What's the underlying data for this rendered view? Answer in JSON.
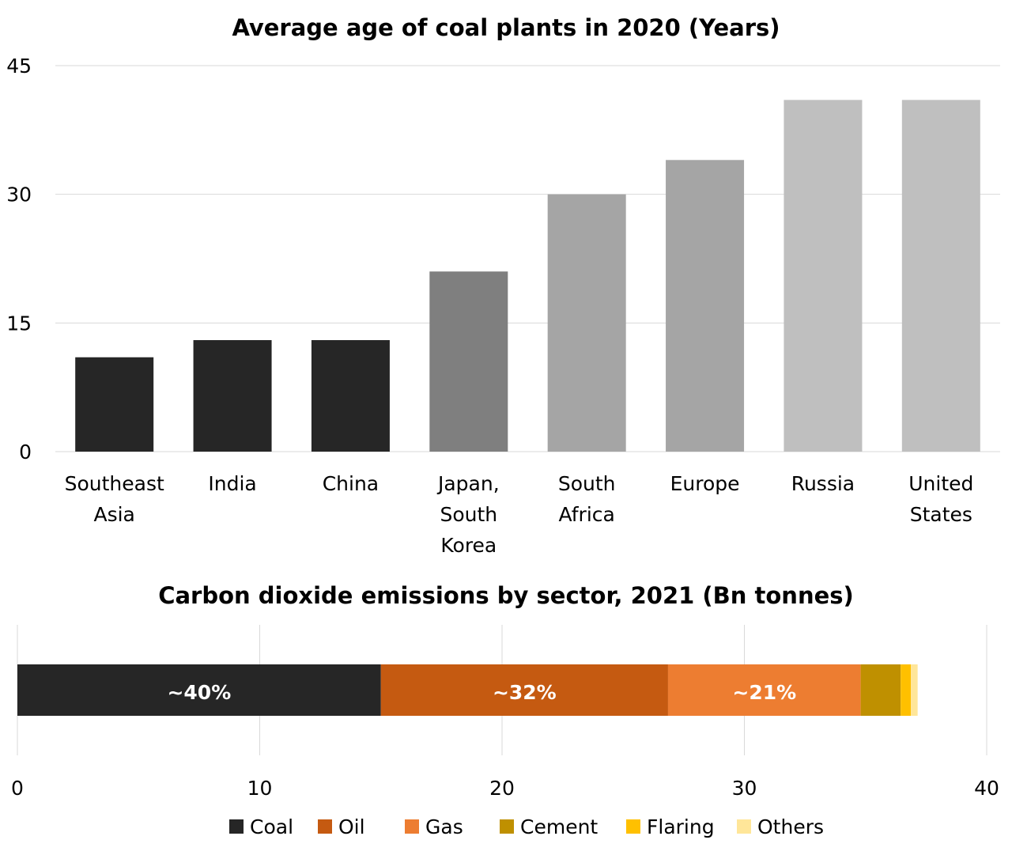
{
  "chart_data": [
    {
      "type": "bar",
      "title": "Average age of coal plants in 2020 (Years)",
      "categories": [
        [
          "Southeast",
          "Asia"
        ],
        [
          "India"
        ],
        [
          "China"
        ],
        [
          "Japan,",
          "South",
          "Korea"
        ],
        [
          "South",
          "Africa"
        ],
        [
          "Europe"
        ],
        [
          "Russia"
        ],
        [
          "United",
          "States"
        ]
      ],
      "values": [
        11,
        13,
        13,
        21,
        30,
        34,
        41,
        41
      ],
      "colors": [
        "#262626",
        "#262626",
        "#262626",
        "#7f7f7f",
        "#a5a5a5",
        "#a5a5a5",
        "#bfbfbf",
        "#bfbfbf"
      ],
      "ylim": [
        0,
        45
      ],
      "yticks": [
        0,
        15,
        30,
        45
      ],
      "grid": true
    },
    {
      "type": "bar",
      "orientation": "horizontal-stacked",
      "title": "Carbon dioxide emissions by sector, 2021 (Bn tonnes)",
      "series": [
        {
          "name": "Coal",
          "value": 15.0,
          "label": "~40%",
          "color": "#262626"
        },
        {
          "name": "Oil",
          "value": 11.85,
          "label": "~32%",
          "color": "#c55a11"
        },
        {
          "name": "Gas",
          "value": 7.95,
          "label": "~21%",
          "color": "#ed7d31"
        },
        {
          "name": "Cement",
          "value": 1.65,
          "label": "",
          "color": "#bf9000"
        },
        {
          "name": "Flaring",
          "value": 0.42,
          "label": "",
          "color": "#ffc000"
        },
        {
          "name": "Others",
          "value": 0.28,
          "label": "",
          "color": "#ffe699"
        }
      ],
      "xlim": [
        0,
        40
      ],
      "xticks": [
        0,
        10,
        20,
        30,
        40
      ],
      "grid": true,
      "legend": "bottom"
    }
  ]
}
